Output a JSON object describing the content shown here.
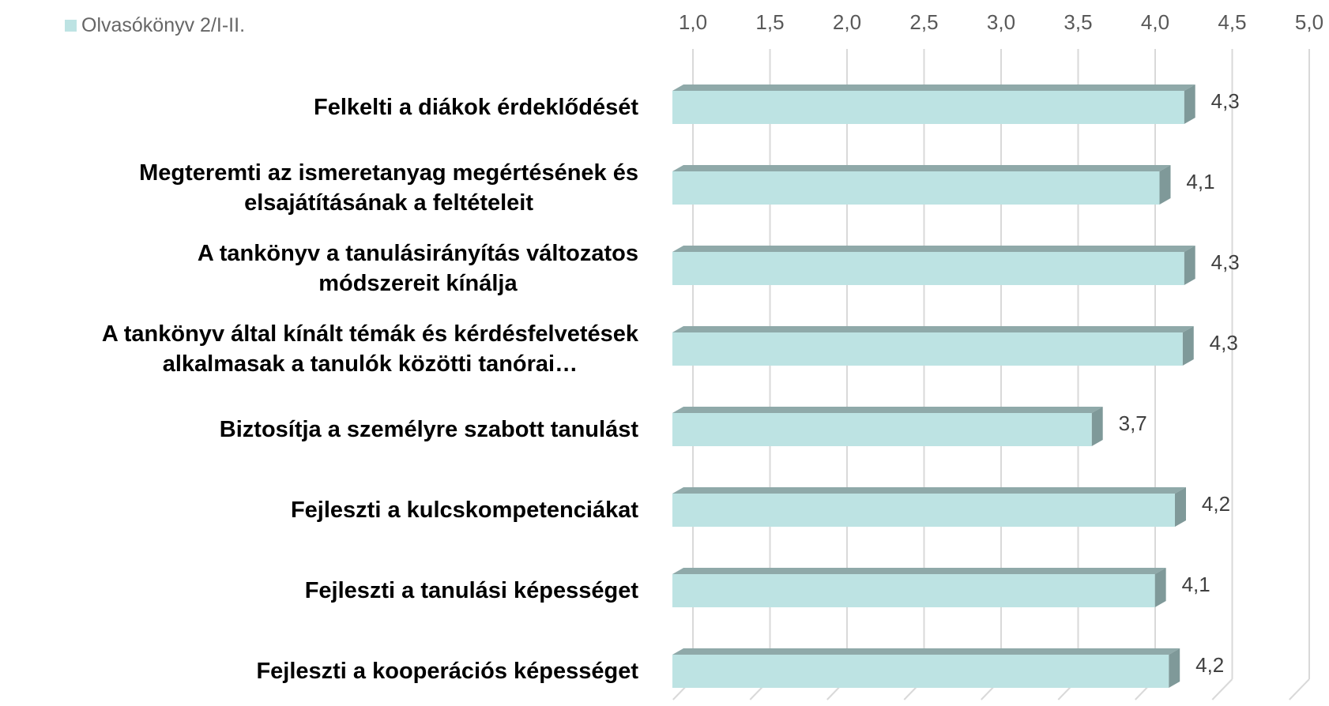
{
  "chart_data": {
    "type": "bar3d_horizontal",
    "legend": {
      "name": "Olvasókönyv 2/I-II.",
      "corner": "top-left"
    },
    "categories": [
      "Felkelti a diákok érdeklődését",
      "Megteremti az ismeretanyag megértésének és\nelsajátításának a feltételeit",
      "A tankönyv a tanulásirányítás változatos\nmódszereit kínálja",
      "A tankönyv által kínált témák és kérdésfelvetések\nalkalmasak a tanulók közötti tanórai…",
      "Biztosítja a személyre szabott tanulást",
      "Fejleszti a kulcskompetenciákat",
      "Fejleszti a tanulási képességet",
      "Fejleszti a kooperációs képességet"
    ],
    "values": [
      4.26,
      4.1,
      4.26,
      4.25,
      3.66,
      4.2,
      4.07,
      4.16
    ],
    "value_labels": [
      "4,3",
      "4,1",
      "4,3",
      "4,3",
      "3,7",
      "4,2",
      "4,1",
      "4,2"
    ],
    "color": "#bde3e3",
    "xlim": [
      1,
      5
    ],
    "xticks": [
      {
        "value": 1,
        "label": "1,0"
      },
      {
        "value": 1.5,
        "label": "1,5"
      },
      {
        "value": 2,
        "label": "2,0"
      },
      {
        "value": 2.5,
        "label": "2,5"
      },
      {
        "value": 3,
        "label": "3,0"
      },
      {
        "value": 3.5,
        "label": "3,5"
      },
      {
        "value": 4,
        "label": "4,0"
      },
      {
        "value": 4.5,
        "label": "4,5"
      },
      {
        "value": 5,
        "label": "5,0"
      }
    ],
    "grid": true
  }
}
